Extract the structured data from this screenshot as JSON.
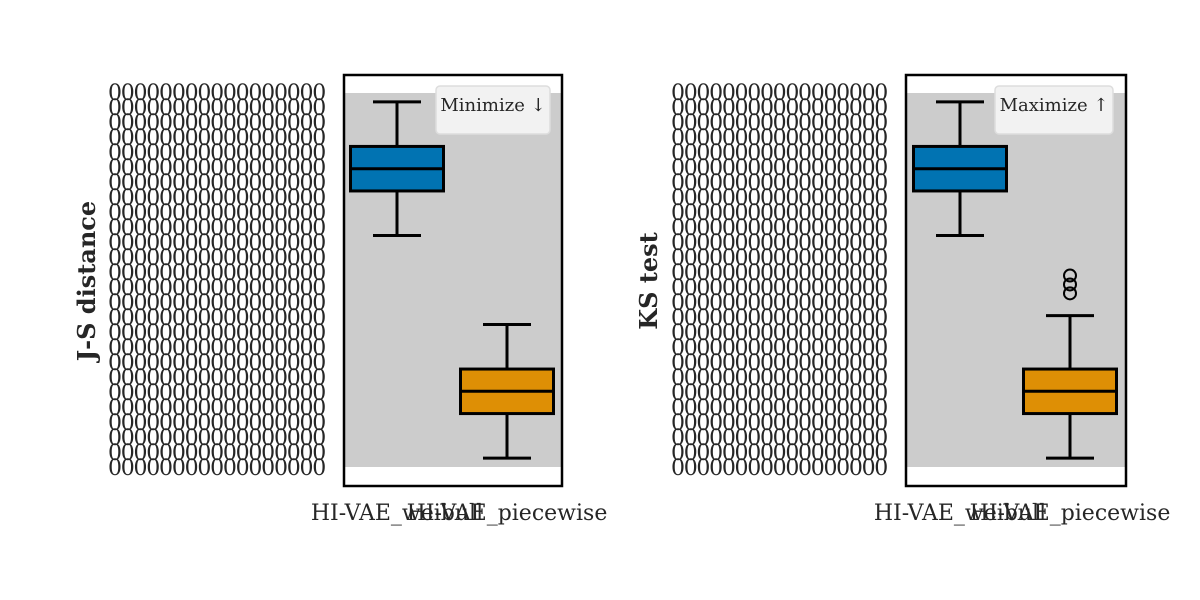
{
  "chart_data": [
    {
      "type": "box",
      "ylabel": "J-S distance",
      "legend_label": "Minimize ↓",
      "legend_position": "top-right",
      "categories": [
        "HI-VAE_weibull",
        "HI-VAE_piecewise"
      ],
      "colors": [
        "#0173b2",
        "#de8f05"
      ],
      "panel_background": "#cccccc",
      "boxes": [
        {
          "name": "HI-VAE_weibull",
          "whislo": 0.52,
          "q1": 0.62,
          "med": 0.67,
          "q3": 0.72,
          "whishi": 0.82,
          "fliers": []
        },
        {
          "name": "HI-VAE_piecewise",
          "whislo": 0.02,
          "q1": 0.12,
          "med": 0.17,
          "q3": 0.22,
          "whishi": 0.32,
          "fliers": []
        }
      ],
      "ylim": [
        0.0,
        0.84
      ]
    },
    {
      "type": "box",
      "ylabel": "KS test",
      "legend_label": "Maximize ↑",
      "legend_position": "top-right",
      "categories": [
        "HI-VAE_weibull",
        "HI-VAE_piecewise"
      ],
      "colors": [
        "#0173b2",
        "#de8f05"
      ],
      "panel_background": "#cccccc",
      "boxes": [
        {
          "name": "HI-VAE_weibull",
          "whislo": 0.52,
          "q1": 0.62,
          "med": 0.67,
          "q3": 0.72,
          "whishi": 0.82,
          "fliers": []
        },
        {
          "name": "HI-VAE_piecewise",
          "whislo": 0.02,
          "q1": 0.12,
          "med": 0.17,
          "q3": 0.22,
          "whishi": 0.34,
          "fliers": [
            0.39,
            0.41,
            0.43
          ]
        }
      ],
      "ylim": [
        0.0,
        0.84
      ]
    }
  ]
}
